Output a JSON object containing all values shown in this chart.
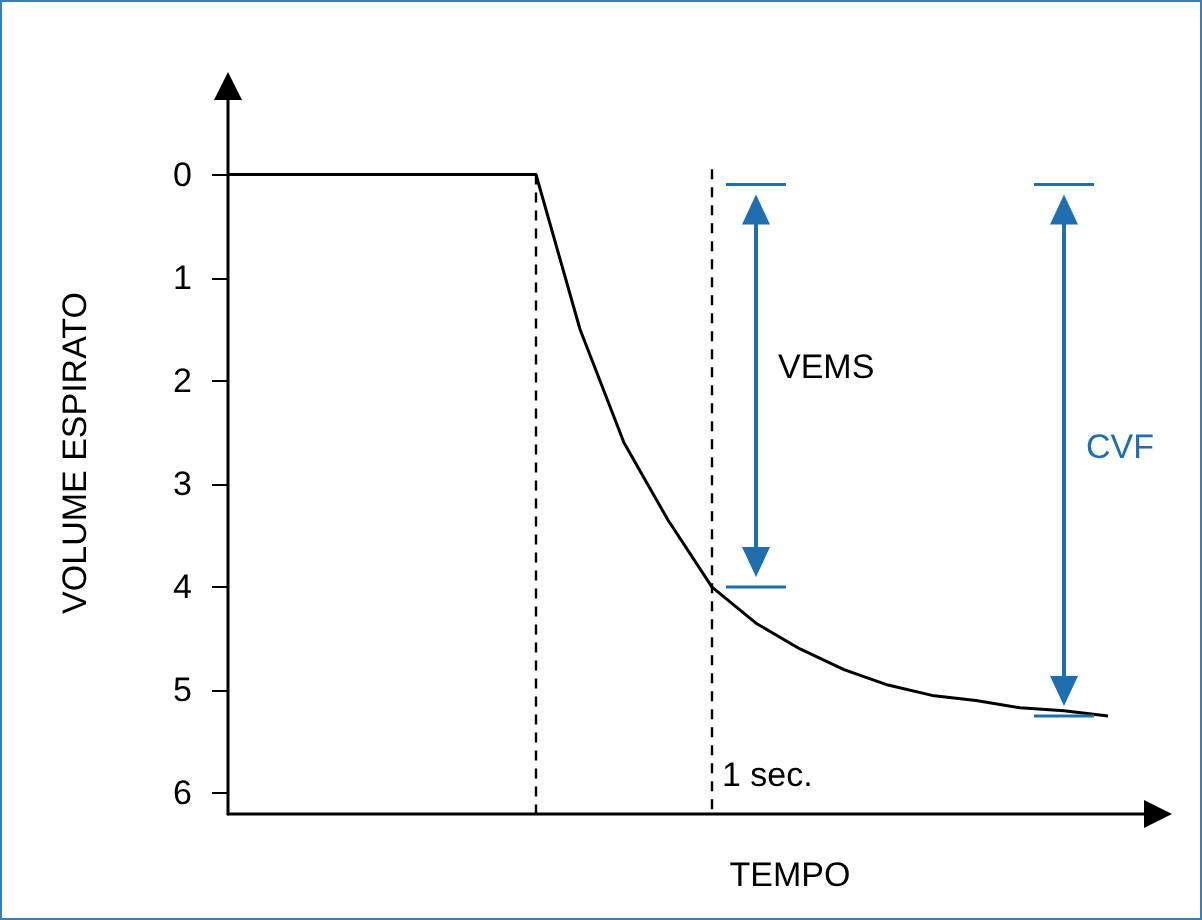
{
  "chart_data": {
    "type": "line",
    "xlabel": "TEMPO",
    "ylabel": "VOLUME ESPIRATO",
    "categories": [
      null,
      null,
      null,
      null,
      null,
      null,
      null,
      null,
      null,
      null,
      null,
      null,
      null,
      null,
      null,
      null,
      null,
      null,
      null,
      null,
      null,
      null
    ],
    "ylim": [
      6.2,
      -0.8
    ],
    "yticks": [
      0,
      1,
      2,
      3,
      4,
      5,
      6
    ],
    "marker": "none",
    "line_style": "solid",
    "series": [
      {
        "color": "#000000",
        "values": [
          0,
          0,
          0,
          0,
          0,
          0,
          0,
          0,
          1.5,
          2.6,
          3.35,
          4.0,
          4.35,
          4.6,
          4.8,
          4.95,
          5.05,
          5.1,
          5.17,
          5.2,
          5.25,
          null
        ]
      }
    ],
    "annotations": [
      "VEMS",
      "CVF",
      "1 sec."
    ]
  }
}
